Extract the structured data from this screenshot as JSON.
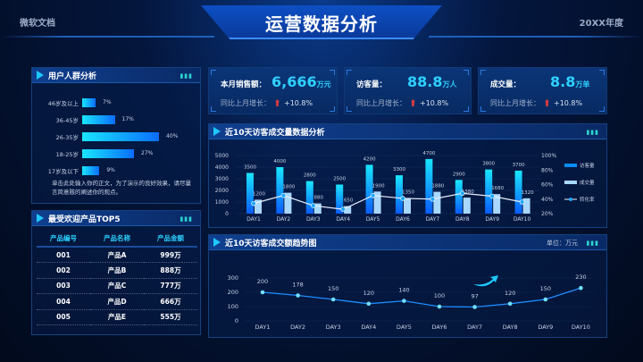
{
  "header": {
    "left": "微软文档",
    "title": "运营数据分析",
    "right": "20XX年度"
  },
  "age_panel": {
    "title": "用户人群分析",
    "rows": [
      {
        "label": "46岁及以上",
        "value": 7,
        "text": "7%"
      },
      {
        "label": "36-45岁",
        "value": 17,
        "text": "17%"
      },
      {
        "label": "26-35岁",
        "value": 40,
        "text": "40%"
      },
      {
        "label": "18-25岁",
        "value": 27,
        "text": "27%"
      },
      {
        "label": "17岁及以下",
        "value": 9,
        "text": "9%"
      }
    ],
    "note": "单击此处输入你的正文，为了演示的良好效果，请尽量言简意赅的阐述你的观点。"
  },
  "top5": {
    "title": "最受欢迎产品TOP5",
    "columns": [
      "产品编号",
      "产品名称",
      "产品金额"
    ],
    "rows": [
      [
        "001",
        "产品A",
        "999万"
      ],
      [
        "002",
        "产品B",
        "888万"
      ],
      [
        "003",
        "产品C",
        "777万"
      ],
      [
        "004",
        "产品D",
        "666万"
      ],
      [
        "005",
        "产品E",
        "555万"
      ]
    ]
  },
  "kpis": [
    {
      "label": "本月销售额：",
      "value": "6,666",
      "unit": "万元",
      "sub": "同比上月增长：",
      "pct": "+10.8%"
    },
    {
      "label": "访客量：",
      "value": "88.8",
      "unit": "万人",
      "sub": "同比上月增长：",
      "pct": "+10.8%"
    },
    {
      "label": "成交量：",
      "value": "8.8",
      "unit": "万单",
      "sub": "同比上月增长：",
      "pct": "+10.8%"
    }
  ],
  "colors": {
    "accent": "#2ed1ff",
    "bar_visitor": "#0a6dff",
    "bar_deal": "#a8d8ff",
    "up": "#e23b3b"
  },
  "chart_data": [
    {
      "type": "bar",
      "title": "近10天访客成交量数据分析",
      "categories": [
        "DAY1",
        "DAY2",
        "DAY3",
        "DAY4",
        "DAY5",
        "DAY6",
        "DAY7",
        "DAY8",
        "DAY9",
        "DAY10"
      ],
      "series": [
        {
          "name": "访客量",
          "type": "bar",
          "values": [
            3500,
            4000,
            2800,
            2500,
            4200,
            3300,
            4700,
            2900,
            3800,
            3700
          ]
        },
        {
          "name": "成交量",
          "type": "bar",
          "values": [
            1200,
            1800,
            880,
            650,
            1900,
            1350,
            1880,
            1380,
            1680,
            1320
          ]
        },
        {
          "name": "转化率",
          "type": "line",
          "axis": "right",
          "values": [
            34,
            45,
            31,
            26,
            45,
            41,
            40,
            48,
            44,
            36
          ]
        }
      ],
      "ylim": [
        0,
        5000
      ],
      "yticks": [
        "0",
        "1000",
        "2000",
        "3000",
        "4000",
        "5000"
      ],
      "y2lim": [
        20,
        100
      ],
      "y2ticks": [
        "20%",
        "40%",
        "60%",
        "80%",
        "100%"
      ],
      "legend": "right"
    },
    {
      "type": "line",
      "title": "近10天访客成交额趋势图",
      "unit_label": "单位：万元",
      "categories": [
        "DAY1",
        "DAY2",
        "DAY3",
        "DAY4",
        "DAY5",
        "DAY6",
        "DAY7",
        "DAY8",
        "DAY9",
        "DAY10"
      ],
      "values": [
        200,
        178,
        150,
        120,
        140,
        100,
        97,
        120,
        150,
        230
      ],
      "ylim": [
        0,
        300
      ],
      "yticks": [
        "0",
        "100",
        "200",
        "300"
      ]
    }
  ]
}
